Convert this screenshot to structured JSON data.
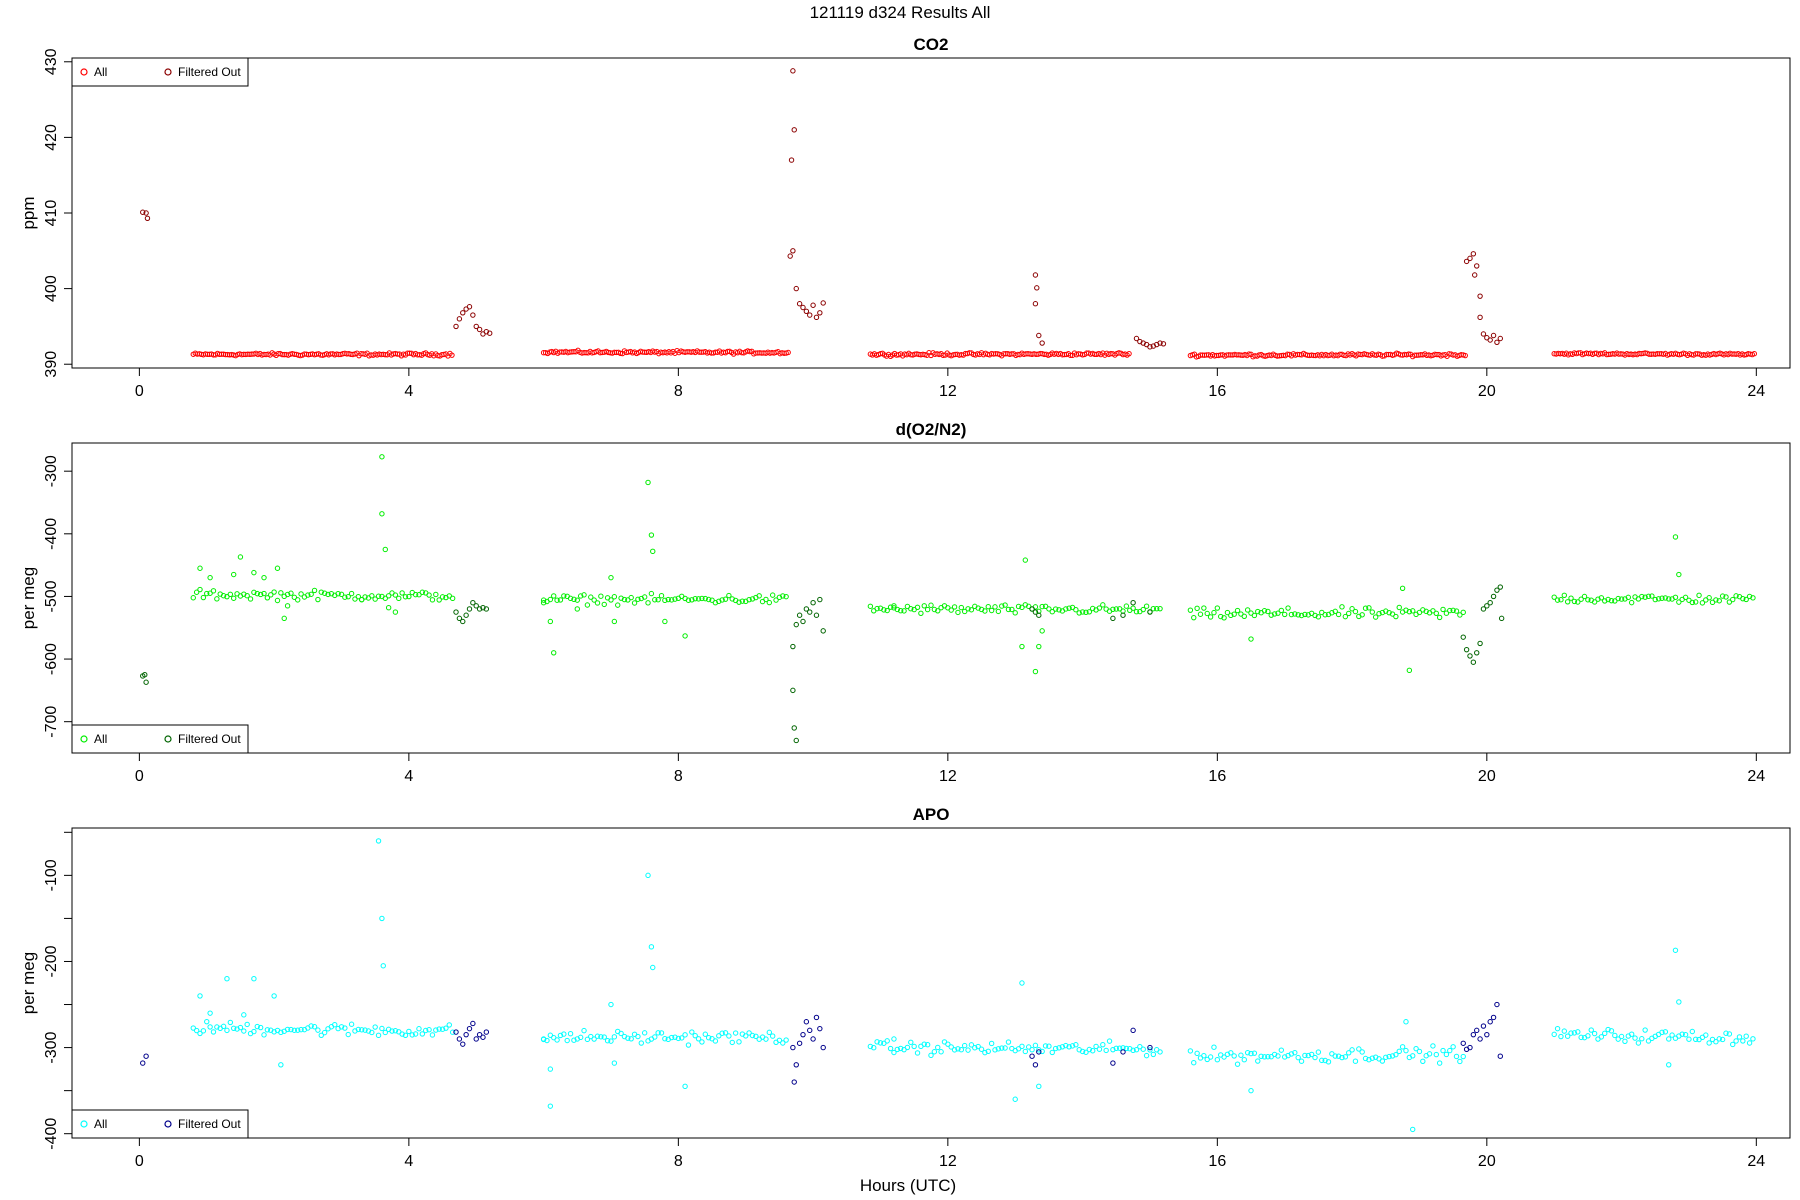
{
  "figure": {
    "title": "121119   d324   Results All",
    "xlabel": "Hours (UTC)"
  },
  "legend": {
    "all": "All",
    "filtered": "Filtered Out"
  },
  "chart_data": [
    {
      "type": "scatter",
      "title": "CO2",
      "ylabel": "ppm",
      "xlim": [
        -1,
        24.5
      ],
      "ylim": [
        389.5,
        430.5
      ],
      "xticks": [
        0,
        4,
        8,
        12,
        16,
        20,
        24
      ],
      "yticks": [
        390,
        400,
        410,
        420,
        430
      ],
      "colors": {
        "all": "#ff0000",
        "filtered": "#8b0000"
      },
      "legend_position": "top-left",
      "segments": [
        {
          "x0": 0.8,
          "x1": 4.65,
          "base": 391.3,
          "slope": 0.0,
          "noise": 0.15,
          "step": 0.03
        },
        {
          "x0": 6.0,
          "x1": 9.65,
          "base": 391.6,
          "slope": -0.05,
          "noise": 0.15,
          "step": 0.03
        },
        {
          "x0": 10.85,
          "x1": 14.7,
          "base": 391.3,
          "slope": 0.05,
          "noise": 0.15,
          "step": 0.03
        },
        {
          "x0": 15.6,
          "x1": 19.7,
          "base": 391.2,
          "slope": 0.05,
          "noise": 0.15,
          "step": 0.03
        },
        {
          "x0": 21.0,
          "x1": 24.0,
          "base": 391.4,
          "slope": -0.1,
          "noise": 0.12,
          "step": 0.03
        }
      ],
      "filtered_points": [
        [
          0.05,
          410.1
        ],
        [
          0.1,
          410.0
        ],
        [
          0.12,
          409.3
        ],
        [
          4.7,
          395.0
        ],
        [
          4.75,
          396.0
        ],
        [
          4.8,
          396.8
        ],
        [
          4.85,
          397.3
        ],
        [
          4.9,
          397.6
        ],
        [
          4.95,
          396.5
        ],
        [
          5.0,
          395.0
        ],
        [
          5.05,
          394.6
        ],
        [
          5.1,
          394.0
        ],
        [
          5.15,
          394.3
        ],
        [
          5.2,
          394.1
        ],
        [
          9.7,
          428.8
        ],
        [
          9.72,
          421.0
        ],
        [
          9.68,
          417.0
        ],
        [
          9.7,
          405.0
        ],
        [
          9.66,
          404.3
        ],
        [
          9.75,
          400.0
        ],
        [
          9.8,
          398.0
        ],
        [
          9.85,
          397.5
        ],
        [
          9.9,
          397.0
        ],
        [
          9.95,
          396.5
        ],
        [
          10.0,
          397.8
        ],
        [
          10.05,
          396.2
        ],
        [
          10.1,
          396.8
        ],
        [
          10.15,
          398.1
        ],
        [
          13.3,
          401.8
        ],
        [
          13.32,
          400.1
        ],
        [
          13.3,
          398.0
        ],
        [
          13.35,
          393.8
        ],
        [
          13.4,
          392.8
        ],
        [
          14.8,
          393.4
        ],
        [
          14.85,
          393.0
        ],
        [
          14.9,
          392.8
        ],
        [
          14.95,
          392.6
        ],
        [
          15.0,
          392.3
        ],
        [
          15.05,
          392.4
        ],
        [
          15.1,
          392.6
        ],
        [
          15.15,
          392.8
        ],
        [
          15.2,
          392.7
        ],
        [
          19.7,
          403.6
        ],
        [
          19.75,
          404.0
        ],
        [
          19.8,
          404.6
        ],
        [
          19.85,
          403.0
        ],
        [
          19.82,
          401.8
        ],
        [
          19.9,
          399.0
        ],
        [
          19.9,
          396.2
        ],
        [
          19.95,
          394.0
        ],
        [
          20.0,
          393.5
        ],
        [
          20.05,
          393.2
        ],
        [
          20.1,
          393.8
        ],
        [
          20.15,
          392.9
        ],
        [
          20.2,
          393.4
        ]
      ]
    },
    {
      "type": "scatter",
      "title": "d(O2/N2)",
      "ylabel": "per meg",
      "xlim": [
        -1,
        24.5
      ],
      "ylim": [
        -750,
        -255
      ],
      "xticks": [
        0,
        4,
        8,
        12,
        16,
        20,
        24
      ],
      "yticks": [
        -300,
        -400,
        -500,
        -600,
        -700
      ],
      "colors": {
        "all": "#00ee00",
        "filtered": "#006400"
      },
      "legend_position": "bottom-left",
      "segments": [
        {
          "x0": 0.8,
          "x1": 4.65,
          "base": -497,
          "slope": -2.5,
          "noise": 6,
          "step": 0.05
        },
        {
          "x0": 6.0,
          "x1": 9.65,
          "base": -505,
          "slope": 0.5,
          "noise": 6,
          "step": 0.05
        },
        {
          "x0": 10.85,
          "x1": 15.2,
          "base": -520,
          "slope": -1.5,
          "noise": 6,
          "step": 0.05
        },
        {
          "x0": 15.6,
          "x1": 19.7,
          "base": -528,
          "slope": 1.5,
          "noise": 7,
          "step": 0.05
        },
        {
          "x0": 21.0,
          "x1": 24.0,
          "base": -503,
          "slope": -2.0,
          "noise": 6,
          "step": 0.05
        }
      ],
      "outliers": [
        [
          0.9,
          -455
        ],
        [
          1.05,
          -470
        ],
        [
          1.4,
          -465
        ],
        [
          1.5,
          -437
        ],
        [
          1.7,
          -462
        ],
        [
          1.85,
          -470
        ],
        [
          2.05,
          -455
        ],
        [
          2.15,
          -535
        ],
        [
          2.2,
          -515
        ],
        [
          3.3,
          -505
        ],
        [
          3.6,
          -277
        ],
        [
          3.6,
          -368
        ],
        [
          3.65,
          -425
        ],
        [
          3.7,
          -518
        ],
        [
          3.8,
          -525
        ],
        [
          6.0,
          -510
        ],
        [
          6.1,
          -540
        ],
        [
          6.15,
          -590
        ],
        [
          6.5,
          -520
        ],
        [
          7.0,
          -470
        ],
        [
          7.05,
          -540
        ],
        [
          7.55,
          -318
        ],
        [
          7.6,
          -402
        ],
        [
          7.62,
          -428
        ],
        [
          7.8,
          -540
        ],
        [
          8.1,
          -563
        ],
        [
          11.2,
          -515
        ],
        [
          13.15,
          -442
        ],
        [
          13.1,
          -580
        ],
        [
          13.3,
          -620
        ],
        [
          13.35,
          -580
        ],
        [
          13.4,
          -555
        ],
        [
          16.5,
          -568
        ],
        [
          18.75,
          -487
        ],
        [
          18.85,
          -618
        ],
        [
          22.8,
          -405
        ],
        [
          22.85,
          -465
        ]
      ],
      "filtered_points": [
        [
          0.05,
          -627
        ],
        [
          0.08,
          -625
        ],
        [
          0.1,
          -637
        ],
        [
          4.7,
          -525
        ],
        [
          4.75,
          -535
        ],
        [
          4.8,
          -540
        ],
        [
          4.85,
          -530
        ],
        [
          4.9,
          -520
        ],
        [
          4.95,
          -510
        ],
        [
          5.0,
          -515
        ],
        [
          5.05,
          -520
        ],
        [
          5.1,
          -518
        ],
        [
          5.15,
          -520
        ],
        [
          9.7,
          -580
        ],
        [
          9.7,
          -650
        ],
        [
          9.72,
          -710
        ],
        [
          9.75,
          -730
        ],
        [
          9.75,
          -545
        ],
        [
          9.8,
          -530
        ],
        [
          9.85,
          -540
        ],
        [
          9.9,
          -520
        ],
        [
          9.95,
          -525
        ],
        [
          10.0,
          -510
        ],
        [
          10.05,
          -530
        ],
        [
          10.1,
          -505
        ],
        [
          10.15,
          -555
        ],
        [
          13.25,
          -520
        ],
        [
          13.3,
          -525
        ],
        [
          13.35,
          -530
        ],
        [
          14.45,
          -535
        ],
        [
          14.6,
          -530
        ],
        [
          14.75,
          -510
        ],
        [
          15.0,
          -525
        ],
        [
          19.65,
          -565
        ],
        [
          19.7,
          -585
        ],
        [
          19.75,
          -595
        ],
        [
          19.8,
          -605
        ],
        [
          19.85,
          -590
        ],
        [
          19.9,
          -575
        ],
        [
          19.95,
          -520
        ],
        [
          20.0,
          -515
        ],
        [
          20.05,
          -510
        ],
        [
          20.1,
          -500
        ],
        [
          20.15,
          -490
        ],
        [
          20.2,
          -485
        ],
        [
          20.22,
          -535
        ]
      ]
    },
    {
      "type": "scatter",
      "title": "APO",
      "ylabel": "per meg",
      "xlim": [
        -1,
        24.5
      ],
      "ylim": [
        -405,
        -45
      ],
      "xticks": [
        0,
        4,
        8,
        12,
        16,
        20,
        24
      ],
      "yticks": [
        -100,
        -200,
        -300,
        -400
      ],
      "yticks_minor": [
        -50,
        -150,
        -250,
        -350
      ],
      "colors": {
        "all": "#00ffff",
        "filtered": "#00008b"
      },
      "legend_position": "bottom-left",
      "segments": [
        {
          "x0": 0.8,
          "x1": 4.65,
          "base": -277,
          "slope": -4.0,
          "noise": 6,
          "step": 0.05
        },
        {
          "x0": 6.0,
          "x1": 9.65,
          "base": -288,
          "slope": 0.0,
          "noise": 6,
          "step": 0.05
        },
        {
          "x0": 10.85,
          "x1": 15.2,
          "base": -300,
          "slope": -2.0,
          "noise": 6,
          "step": 0.05
        },
        {
          "x0": 15.6,
          "x1": 19.7,
          "base": -310,
          "slope": 3.0,
          "noise": 7,
          "step": 0.05
        },
        {
          "x0": 21.0,
          "x1": 24.0,
          "base": -285,
          "slope": -4.0,
          "noise": 6,
          "step": 0.05
        }
      ],
      "outliers": [
        [
          0.9,
          -240
        ],
        [
          1.05,
          -260
        ],
        [
          1.3,
          -220
        ],
        [
          1.55,
          -262
        ],
        [
          1.7,
          -220
        ],
        [
          2.0,
          -240
        ],
        [
          2.1,
          -320
        ],
        [
          3.55,
          -60
        ],
        [
          3.6,
          -150
        ],
        [
          3.62,
          -205
        ],
        [
          6.0,
          -290
        ],
        [
          6.1,
          -325
        ],
        [
          6.1,
          -368
        ],
        [
          7.0,
          -250
        ],
        [
          7.05,
          -318
        ],
        [
          7.55,
          -100
        ],
        [
          7.6,
          -183
        ],
        [
          7.62,
          -207
        ],
        [
          8.1,
          -345
        ],
        [
          11.2,
          -290
        ],
        [
          13.1,
          -225
        ],
        [
          13.0,
          -360
        ],
        [
          13.35,
          -345
        ],
        [
          16.5,
          -350
        ],
        [
          18.8,
          -270
        ],
        [
          18.9,
          -395
        ],
        [
          22.8,
          -187
        ],
        [
          22.85,
          -247
        ],
        [
          22.7,
          -320
        ]
      ],
      "filtered_points": [
        [
          0.05,
          -318
        ],
        [
          0.1,
          -310
        ],
        [
          4.7,
          -282
        ],
        [
          4.75,
          -290
        ],
        [
          4.8,
          -296
        ],
        [
          4.85,
          -285
        ],
        [
          4.9,
          -278
        ],
        [
          4.95,
          -272
        ],
        [
          5.0,
          -290
        ],
        [
          5.05,
          -285
        ],
        [
          5.1,
          -288
        ],
        [
          5.15,
          -282
        ],
        [
          9.7,
          -300
        ],
        [
          9.72,
          -340
        ],
        [
          9.75,
          -320
        ],
        [
          9.8,
          -295
        ],
        [
          9.85,
          -285
        ],
        [
          9.9,
          -270
        ],
        [
          9.95,
          -280
        ],
        [
          10.0,
          -290
        ],
        [
          10.05,
          -265
        ],
        [
          10.1,
          -278
        ],
        [
          10.15,
          -300
        ],
        [
          13.25,
          -310
        ],
        [
          13.3,
          -320
        ],
        [
          13.35,
          -305
        ],
        [
          14.45,
          -318
        ],
        [
          14.6,
          -305
        ],
        [
          14.75,
          -280
        ],
        [
          15.0,
          -300
        ],
        [
          19.65,
          -295
        ],
        [
          19.7,
          -302
        ],
        [
          19.75,
          -300
        ],
        [
          19.8,
          -285
        ],
        [
          19.85,
          -280
        ],
        [
          19.9,
          -290
        ],
        [
          19.95,
          -275
        ],
        [
          20.0,
          -285
        ],
        [
          20.05,
          -270
        ],
        [
          20.1,
          -265
        ],
        [
          20.15,
          -250
        ],
        [
          20.2,
          -310
        ]
      ]
    }
  ]
}
